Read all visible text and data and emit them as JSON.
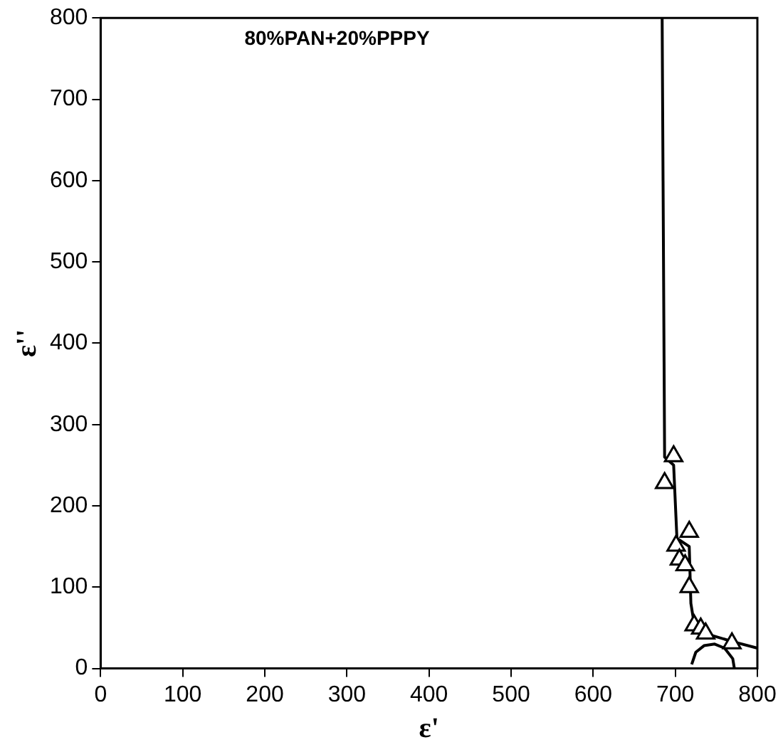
{
  "chart_data": {
    "type": "scatter",
    "xlabel": "ε'",
    "ylabel": "ε''",
    "annotations": [
      "80%PAN+20%PPPY"
    ],
    "xlim": [
      0,
      800
    ],
    "ylim": [
      0,
      800
    ],
    "xticks": [
      0,
      100,
      200,
      300,
      400,
      500,
      600,
      700,
      800
    ],
    "yticks": [
      0,
      100,
      200,
      300,
      400,
      500,
      600,
      700,
      800
    ],
    "grid": false,
    "legend": false,
    "series": [
      {
        "type": "scatter",
        "marker": "triangle",
        "color": "#000000",
        "x": [
          687,
          698,
          717,
          701,
          705,
          712,
          717,
          723,
          731,
          737,
          769
        ],
        "values": [
          228,
          261,
          168,
          151,
          134,
          127,
          100,
          53,
          49,
          43,
          31
        ]
      },
      {
        "type": "line",
        "marker": "none",
        "line_style": "solid",
        "color": "#000000",
        "x": [
          684,
          687,
          698,
          702,
          717,
          719,
          723,
          740,
          770,
          800
        ],
        "values": [
          800,
          260,
          250,
          160,
          150,
          80,
          55,
          42,
          33,
          25
        ]
      },
      {
        "type": "line",
        "marker": "none",
        "line_style": "solid",
        "color": "#000000",
        "x": [
          720,
          725,
          735,
          748,
          760,
          770,
          772
        ],
        "values": [
          5,
          20,
          28,
          30,
          25,
          12,
          0
        ]
      }
    ]
  }
}
